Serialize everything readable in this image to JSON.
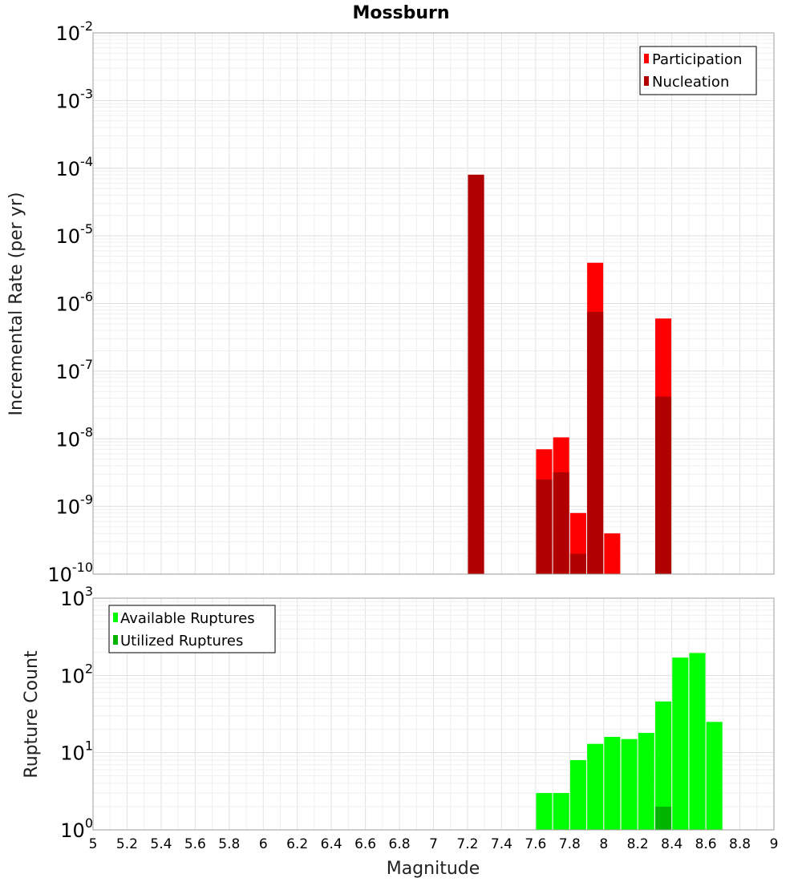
{
  "chart_data": [
    {
      "type": "bar",
      "title": "Mossburn",
      "xlabel": "Magnitude",
      "ylabel": "Incremental Rate (per yr)",
      "yscale": "log",
      "ylim_exponents": [
        -10,
        -2
      ],
      "xlim": [
        5,
        9
      ],
      "grid": true,
      "legend_position": "top-right",
      "x": [
        7.25,
        7.65,
        7.75,
        7.85,
        7.95,
        8.05,
        8.35
      ],
      "series": [
        {
          "name": "Participation",
          "color": "#ff0000",
          "values": [
            8e-05,
            7e-09,
            1.05e-08,
            8e-10,
            4e-06,
            4e-10,
            6e-07
          ]
        },
        {
          "name": "Nucleation",
          "color": "#b00000",
          "values": [
            8e-05,
            2.5e-09,
            3.2e-09,
            2e-10,
            7.5e-07,
            null,
            4.2e-08
          ]
        }
      ]
    },
    {
      "type": "bar",
      "xlabel": "Magnitude",
      "ylabel": "Rupture Count",
      "yscale": "log",
      "ylim_exponents": [
        0,
        3
      ],
      "xlim": [
        5,
        9
      ],
      "grid": true,
      "legend_position": "top-left",
      "x": [
        7.25,
        7.65,
        7.75,
        7.85,
        7.95,
        8.05,
        8.15,
        8.25,
        8.35,
        8.45,
        8.55,
        8.65
      ],
      "series": [
        {
          "name": "Available Ruptures",
          "color": "#00ff00",
          "values": [
            1,
            3,
            3,
            8,
            13,
            16,
            15,
            18,
            46,
            170,
            195,
            25
          ]
        },
        {
          "name": "Utilized Ruptures",
          "color": "#00b400",
          "values": [
            1,
            1,
            1,
            1,
            1,
            1,
            null,
            null,
            2,
            null,
            null,
            null
          ]
        }
      ]
    }
  ],
  "x_ticks": [
    "5",
    "5.2",
    "5.4",
    "5.6",
    "5.8",
    "6",
    "6.2",
    "6.4",
    "6.6",
    "6.8",
    "7",
    "7.2",
    "7.4",
    "7.6",
    "7.8",
    "8",
    "8.2",
    "8.4",
    "8.6",
    "8.8",
    "9"
  ],
  "y_tick_base": "10"
}
